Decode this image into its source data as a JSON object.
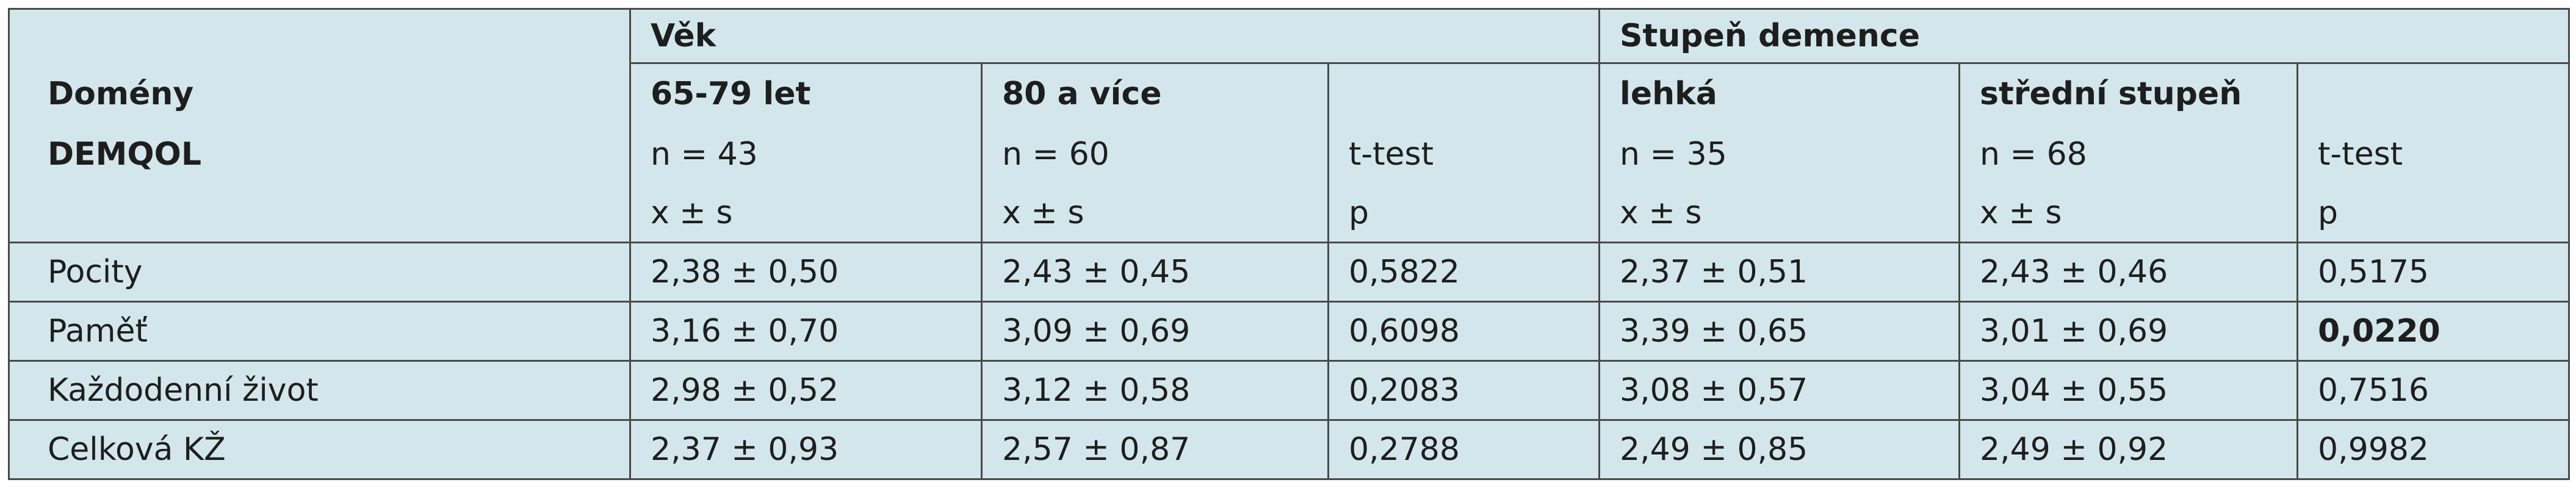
{
  "table": {
    "header": {
      "domain_label": [
        "Domény",
        "DEMQOL"
      ],
      "groups": [
        "Věk",
        "Stupeň demence"
      ],
      "columns": [
        {
          "label": "65-79 let",
          "n": "n = 43",
          "stat": "x ± s"
        },
        {
          "label": "80 a více",
          "n": "n = 60",
          "stat": "x ± s"
        },
        {
          "n": "t-test",
          "stat": "p"
        },
        {
          "label": "lehká",
          "n": "n = 35",
          "stat": "x ± s"
        },
        {
          "label": "střední stupeň",
          "n": "n = 68",
          "stat": "x ± s"
        },
        {
          "n": "t-test",
          "stat": "p"
        }
      ]
    },
    "rows": [
      [
        "Pocity",
        "2,38 ± 0,50",
        "2,43 ± 0,45",
        "0,5822",
        "2,37 ± 0,51",
        "2,43 ± 0,46",
        "0,5175"
      ],
      [
        "Paměť",
        "3,16 ± 0,70",
        "3,09 ± 0,69",
        "0,6098",
        "3,39 ± 0,65",
        "3,01 ± 0,69",
        "0,0220"
      ],
      [
        "Každodenní život",
        "2,98 ± 0,52",
        "3,12 ± 0,58",
        "0,2083",
        "3,08 ± 0,57",
        "3,04 ± 0,55",
        "0,7516"
      ],
      [
        "Celková KŽ",
        "2,37 ± 0,93",
        "2,57 ± 0,87",
        "0,2788",
        "2,49 ± 0,85",
        "2,49 ± 0,92",
        "0,9982"
      ]
    ]
  }
}
